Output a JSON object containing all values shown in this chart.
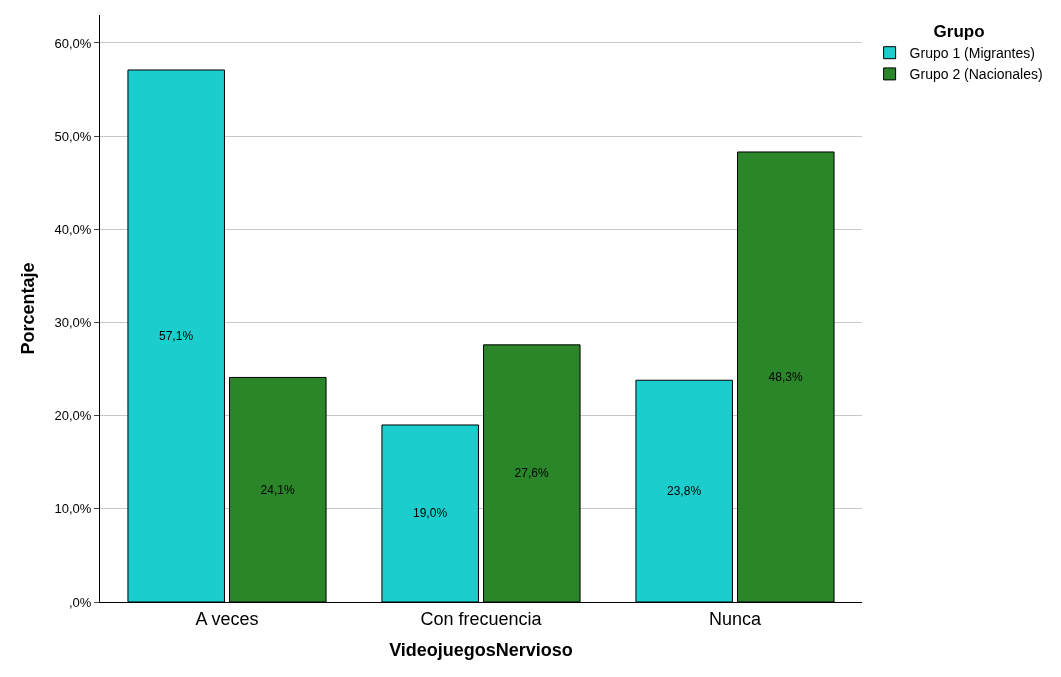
{
  "chart_data": {
    "type": "bar",
    "xlabel": "VideojuegosNervioso",
    "ylabel": "Porcentaje",
    "legend_title": "Grupo",
    "categories": [
      "A veces",
      "Con frecuencia",
      "Nunca"
    ],
    "series": [
      {
        "name": "Grupo 1 (Migrantes)",
        "color": "#1ccdcd",
        "values": [
          57.1,
          19.0,
          23.8
        ],
        "value_labels": [
          "57,1%",
          "19,0%",
          "23,8%"
        ]
      },
      {
        "name": "Grupo 2 (Nacionales)",
        "color": "#2a8629",
        "values": [
          24.1,
          27.6,
          48.3
        ],
        "value_labels": [
          "24,1%",
          "27,6%",
          "48,3%"
        ]
      }
    ],
    "ylim": [
      0,
      63
    ],
    "yticks": [
      {
        "value": 0,
        "label": ",0%"
      },
      {
        "value": 10,
        "label": "10,0%"
      },
      {
        "value": 20,
        "label": "20,0%"
      },
      {
        "value": 30,
        "label": "30,0%"
      },
      {
        "value": 40,
        "label": "40,0%"
      },
      {
        "value": 50,
        "label": "50,0%"
      },
      {
        "value": 60,
        "label": "60,0%"
      }
    ],
    "grid": "y",
    "legend": "top right"
  }
}
